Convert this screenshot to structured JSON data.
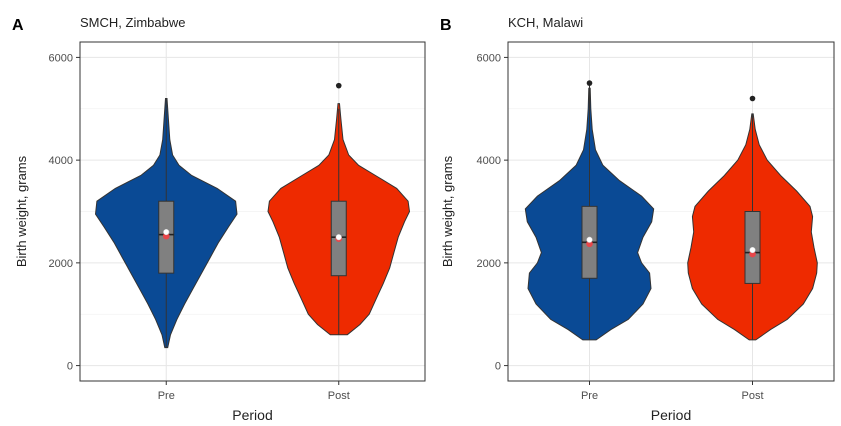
{
  "chart_data": [
    {
      "panel_letter": "A",
      "title": "SMCH, Zimbabwe",
      "type": "violin",
      "xlabel": "Period",
      "ylabel": "Birth weight, grams",
      "ylim": [
        -300,
        6300
      ],
      "yticks": [
        0,
        2000,
        4000,
        6000
      ],
      "grid": true,
      "categories": [
        "Pre",
        "Post"
      ],
      "series": [
        {
          "category": "Pre",
          "color": "#0a4a95",
          "box": {
            "q1": 1800,
            "median": 2550,
            "q3": 3200,
            "whisker_low": 350,
            "whisker_high": 5200
          },
          "mean": 2600,
          "outliers": [],
          "density": [
            [
              350,
              0.02
            ],
            [
              600,
              0.06
            ],
            [
              900,
              0.15
            ],
            [
              1200,
              0.26
            ],
            [
              1500,
              0.38
            ],
            [
              1800,
              0.5
            ],
            [
              2100,
              0.62
            ],
            [
              2400,
              0.74
            ],
            [
              2700,
              0.88
            ],
            [
              2950,
              1.0
            ],
            [
              3200,
              0.98
            ],
            [
              3450,
              0.72
            ],
            [
              3700,
              0.36
            ],
            [
              3900,
              0.18
            ],
            [
              4100,
              0.09
            ],
            [
              4400,
              0.05
            ],
            [
              4800,
              0.03
            ],
            [
              5200,
              0.01
            ]
          ]
        },
        {
          "category": "Post",
          "color": "#ee2a00",
          "box": {
            "q1": 1750,
            "median": 2500,
            "q3": 3200,
            "whisker_low": 600,
            "whisker_high": 5000
          },
          "mean": 2500,
          "outliers": [
            5450
          ],
          "density": [
            [
              600,
              0.12
            ],
            [
              800,
              0.3
            ],
            [
              1000,
              0.43
            ],
            [
              1300,
              0.53
            ],
            [
              1600,
              0.63
            ],
            [
              1900,
              0.72
            ],
            [
              2200,
              0.78
            ],
            [
              2500,
              0.84
            ],
            [
              2800,
              0.93
            ],
            [
              3000,
              1.0
            ],
            [
              3200,
              0.98
            ],
            [
              3450,
              0.82
            ],
            [
              3700,
              0.52
            ],
            [
              3900,
              0.28
            ],
            [
              4100,
              0.14
            ],
            [
              4400,
              0.06
            ],
            [
              4800,
              0.03
            ],
            [
              5100,
              0.01
            ]
          ]
        }
      ]
    },
    {
      "panel_letter": "B",
      "title": "KCH, Malawi",
      "type": "violin",
      "xlabel": "Period",
      "ylabel": "Birth weight, grams",
      "ylim": [
        -300,
        6300
      ],
      "yticks": [
        0,
        2000,
        4000,
        6000
      ],
      "grid": true,
      "categories": [
        "Pre",
        "Post"
      ],
      "series": [
        {
          "category": "Pre",
          "color": "#0a4a95",
          "box": {
            "q1": 1700,
            "median": 2400,
            "q3": 3100,
            "whisker_low": 500,
            "whisker_high": 5500
          },
          "mean": 2450,
          "outliers": [
            5500
          ],
          "density": [
            [
              500,
              0.1
            ],
            [
              700,
              0.32
            ],
            [
              900,
              0.58
            ],
            [
              1200,
              0.8
            ],
            [
              1500,
              0.92
            ],
            [
              1800,
              0.9
            ],
            [
              2000,
              0.78
            ],
            [
              2200,
              0.72
            ],
            [
              2500,
              0.8
            ],
            [
              2800,
              0.93
            ],
            [
              3050,
              0.96
            ],
            [
              3300,
              0.78
            ],
            [
              3600,
              0.45
            ],
            [
              3900,
              0.2
            ],
            [
              4200,
              0.09
            ],
            [
              4600,
              0.04
            ],
            [
              5000,
              0.02
            ],
            [
              5400,
              0.01
            ]
          ]
        },
        {
          "category": "Post",
          "color": "#ee2a00",
          "box": {
            "q1": 1600,
            "median": 2200,
            "q3": 3000,
            "whisker_low": 500,
            "whisker_high": 4900
          },
          "mean": 2250,
          "outliers": [
            5200
          ],
          "density": [
            [
              500,
              0.05
            ],
            [
              700,
              0.27
            ],
            [
              900,
              0.52
            ],
            [
              1200,
              0.76
            ],
            [
              1500,
              0.9
            ],
            [
              1800,
              0.96
            ],
            [
              2000,
              0.97
            ],
            [
              2300,
              0.92
            ],
            [
              2600,
              0.88
            ],
            [
              2900,
              0.9
            ],
            [
              3100,
              0.86
            ],
            [
              3400,
              0.66
            ],
            [
              3700,
              0.42
            ],
            [
              4000,
              0.22
            ],
            [
              4300,
              0.1
            ],
            [
              4600,
              0.04
            ],
            [
              4900,
              0.01
            ]
          ]
        }
      ]
    }
  ]
}
